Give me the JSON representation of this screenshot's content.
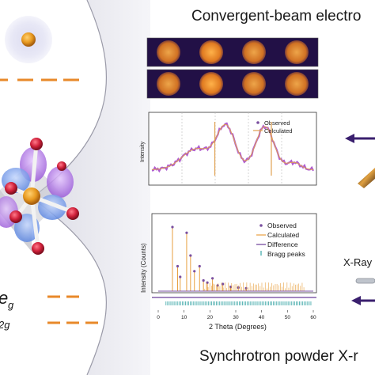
{
  "titles": {
    "top": "Convergent-beam electro",
    "bottom": "Synchrotron powder X-r"
  },
  "labels": {
    "eg": "e",
    "eg_sub": "g",
    "t2g_sub": "2g",
    "xray": "X-Ray"
  },
  "cbed_panel": {
    "rows": 2,
    "disks_per_row": 4
  },
  "cbed_profile": {
    "ylabel": "Intensity",
    "legend": [
      "Observed",
      "Calculated"
    ]
  },
  "chart_data": {
    "type": "line",
    "title": "",
    "xlabel": "2 Theta (Degrees)",
    "ylabel": "Intensity (Counts)",
    "xlim": [
      0,
      60
    ],
    "x_ticks": [
      "0",
      "10",
      "20",
      "30",
      "40",
      "50",
      "60"
    ],
    "legend": [
      "Observed",
      "Calculated",
      "Difference",
      "Bragg peaks"
    ],
    "peaks": [
      {
        "x": 5.5,
        "y": 0.9
      },
      {
        "x": 7.5,
        "y": 0.35
      },
      {
        "x": 8.5,
        "y": 0.2
      },
      {
        "x": 11.0,
        "y": 0.82
      },
      {
        "x": 12.5,
        "y": 0.5
      },
      {
        "x": 14.0,
        "y": 0.28
      },
      {
        "x": 16.0,
        "y": 0.35
      },
      {
        "x": 17.5,
        "y": 0.15
      },
      {
        "x": 19.0,
        "y": 0.12
      },
      {
        "x": 21.0,
        "y": 0.18
      },
      {
        "x": 23.0,
        "y": 0.08
      },
      {
        "x": 25.0,
        "y": 0.1
      },
      {
        "x": 28.0,
        "y": 0.06
      },
      {
        "x": 31.0,
        "y": 0.05
      },
      {
        "x": 34.0,
        "y": 0.04
      }
    ],
    "colors": {
      "observed": "#7a4fa0",
      "calculated": "#e8a040",
      "difference": "#6a3d9a",
      "bragg": "#3aa6a6"
    }
  },
  "colors": {
    "orange": "#e8892a",
    "arrow": "#3a1f6e",
    "cbed_bg": "#221046",
    "cbed_disk": "#f2a03a",
    "profile": "#b05cd0",
    "calc": "#e0a050"
  }
}
